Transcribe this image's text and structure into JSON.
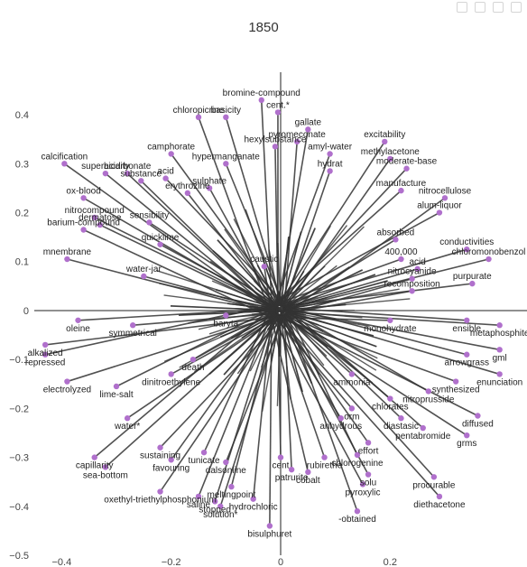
{
  "title": "1850",
  "chart_data": {
    "type": "scatter",
    "title": "1850",
    "xlim": [
      -0.45,
      0.45
    ],
    "ylim": [
      -0.5,
      0.45
    ],
    "xticks": [
      -0.4,
      -0.2,
      0,
      0.2
    ],
    "yticks": [
      -0.5,
      -0.4,
      -0.3,
      -0.2,
      -0.1,
      0,
      0.1,
      0.2,
      0.3,
      0.4
    ],
    "xtick_labels": [
      "−0.4",
      "−0.2",
      "0",
      "0.2"
    ],
    "ytick_labels": [
      "−0.5",
      "−0.4",
      "−0.3",
      "−0.2",
      "−0.1",
      "0",
      "0.1",
      "0.2",
      "0.3",
      "0.4"
    ],
    "grid": false,
    "origin_lines": true,
    "point_color": "#b070cc",
    "line_color": "#333333",
    "points": [
      {
        "label": "bromine-compound",
        "x": -0.035,
        "y": 0.43
      },
      {
        "label": "cent.*",
        "x": -0.005,
        "y": 0.405
      },
      {
        "label": "basicity",
        "x": -0.1,
        "y": 0.395
      },
      {
        "label": "chloropicrine",
        "x": -0.15,
        "y": 0.395
      },
      {
        "label": "gallate",
        "x": 0.05,
        "y": 0.37
      },
      {
        "label": "pyromeconate",
        "x": 0.03,
        "y": 0.345
      },
      {
        "label": "excitability",
        "x": 0.19,
        "y": 0.345
      },
      {
        "label": "hexylsubstance",
        "x": -0.01,
        "y": 0.335
      },
      {
        "label": "camphorate",
        "x": -0.2,
        "y": 0.32
      },
      {
        "label": "amyl-water",
        "x": 0.09,
        "y": 0.32
      },
      {
        "label": "methylacetone",
        "x": 0.2,
        "y": 0.31
      },
      {
        "label": "hypermanganate",
        "x": -0.1,
        "y": 0.3
      },
      {
        "label": "moderate-base",
        "x": 0.23,
        "y": 0.29
      },
      {
        "label": "calcification",
        "x": -0.395,
        "y": 0.3
      },
      {
        "label": "hydrat",
        "x": 0.09,
        "y": 0.285
      },
      {
        "label": "superacidity",
        "x": -0.32,
        "y": 0.28
      },
      {
        "label": "bicarbonate",
        "x": -0.28,
        "y": 0.28
      },
      {
        "label": "acid",
        "x": -0.21,
        "y": 0.27
      },
      {
        "label": "substance",
        "x": -0.255,
        "y": 0.265
      },
      {
        "label": "sulphate",
        "x": -0.13,
        "y": 0.25
      },
      {
        "label": "erythrozine",
        "x": -0.17,
        "y": 0.24
      },
      {
        "label": "manufacture",
        "x": 0.22,
        "y": 0.245
      },
      {
        "label": "ox-blood",
        "x": -0.36,
        "y": 0.23
      },
      {
        "label": "nitrocellulose",
        "x": 0.3,
        "y": 0.23
      },
      {
        "label": "alum-liquor",
        "x": 0.29,
        "y": 0.2
      },
      {
        "label": "nitrocompound",
        "x": -0.34,
        "y": 0.19
      },
      {
        "label": "dermatose",
        "x": -0.33,
        "y": 0.175
      },
      {
        "label": "barium-compound",
        "x": -0.36,
        "y": 0.165
      },
      {
        "label": "sensibility",
        "x": -0.24,
        "y": 0.18
      },
      {
        "label": "quicklime",
        "x": -0.22,
        "y": 0.135
      },
      {
        "label": "absorbed",
        "x": 0.21,
        "y": 0.145
      },
      {
        "label": "conductivities",
        "x": 0.34,
        "y": 0.125
      },
      {
        "label": "chloromonobenzol",
        "x": 0.38,
        "y": 0.105
      },
      {
        "label": "caustic",
        "x": -0.03,
        "y": 0.09
      },
      {
        "label": "400,000",
        "x": 0.22,
        "y": 0.105
      },
      {
        "label": "acid",
        "x": 0.25,
        "y": 0.085
      },
      {
        "label": "mnembrane",
        "x": -0.39,
        "y": 0.105
      },
      {
        "label": "nitrocyanide",
        "x": 0.24,
        "y": 0.065
      },
      {
        "label": "purpurate",
        "x": 0.35,
        "y": 0.055
      },
      {
        "label": "water-jar",
        "x": -0.25,
        "y": 0.07
      },
      {
        "label": "recomposition",
        "x": 0.24,
        "y": 0.04
      },
      {
        "label": "baryta",
        "x": -0.1,
        "y": -0.01
      },
      {
        "label": "oleine",
        "x": -0.37,
        "y": -0.02
      },
      {
        "label": "symmetrical",
        "x": -0.27,
        "y": -0.03
      },
      {
        "label": "monohydrate",
        "x": 0.2,
        "y": -0.02
      },
      {
        "label": "ensible",
        "x": 0.34,
        "y": -0.02
      },
      {
        "label": "metaphosphite",
        "x": 0.4,
        "y": -0.03
      },
      {
        "label": "alkalized",
        "x": -0.43,
        "y": -0.07
      },
      {
        "label": "repressed",
        "x": -0.43,
        "y": -0.09
      },
      {
        "label": "death",
        "x": -0.16,
        "y": -0.1
      },
      {
        "label": "ammonia",
        "x": 0.13,
        "y": -0.13
      },
      {
        "label": "arrowgrass",
        "x": 0.34,
        "y": -0.09
      },
      {
        "label": "gml",
        "x": 0.4,
        "y": -0.08
      },
      {
        "label": "dinitroethylene",
        "x": -0.2,
        "y": -0.13
      },
      {
        "label": "electrolyzed",
        "x": -0.39,
        "y": -0.145
      },
      {
        "label": "lime-salt",
        "x": -0.3,
        "y": -0.155
      },
      {
        "label": "enunciation",
        "x": 0.4,
        "y": -0.13
      },
      {
        "label": "synthesized",
        "x": 0.32,
        "y": -0.145
      },
      {
        "label": "nitroprusside",
        "x": 0.27,
        "y": -0.165
      },
      {
        "label": "chlorates",
        "x": 0.2,
        "y": -0.18
      },
      {
        "label": "orm",
        "x": 0.13,
        "y": -0.2
      },
      {
        "label": "anhydrous",
        "x": 0.11,
        "y": -0.22
      },
      {
        "label": "diastasic",
        "x": 0.22,
        "y": -0.22
      },
      {
        "label": "diffused",
        "x": 0.36,
        "y": -0.215
      },
      {
        "label": "water*",
        "x": -0.28,
        "y": -0.22
      },
      {
        "label": "pentabromide",
        "x": 0.26,
        "y": -0.24
      },
      {
        "label": "grms",
        "x": 0.34,
        "y": -0.255
      },
      {
        "label": "effort",
        "x": 0.16,
        "y": -0.27
      },
      {
        "label": "chlorogenine",
        "x": 0.14,
        "y": -0.295
      },
      {
        "label": "capillarity",
        "x": -0.34,
        "y": -0.3
      },
      {
        "label": "sea-bottom",
        "x": -0.32,
        "y": -0.32
      },
      {
        "label": "sustaining",
        "x": -0.22,
        "y": -0.28
      },
      {
        "label": "tunicate",
        "x": -0.14,
        "y": -0.29
      },
      {
        "label": "favouring",
        "x": -0.2,
        "y": -0.305
      },
      {
        "label": "dalsonline",
        "x": -0.1,
        "y": -0.31
      },
      {
        "label": "rubirethe",
        "x": 0.08,
        "y": -0.3
      },
      {
        "label": "cent",
        "x": 0.0,
        "y": -0.3
      },
      {
        "label": "patrurite",
        "x": 0.02,
        "y": -0.325
      },
      {
        "label": "cobalt",
        "x": 0.05,
        "y": -0.33
      },
      {
        "label": "solu",
        "x": 0.16,
        "y": -0.335
      },
      {
        "label": "procurable",
        "x": 0.28,
        "y": -0.34
      },
      {
        "label": "pyroxylic",
        "x": 0.15,
        "y": -0.355
      },
      {
        "label": "meltingpoint",
        "x": -0.09,
        "y": -0.36
      },
      {
        "label": "oxethyl-triethylphosphonium",
        "x": -0.22,
        "y": -0.37
      },
      {
        "label": "saline",
        "x": -0.15,
        "y": -0.38
      },
      {
        "label": "stopped",
        "x": -0.12,
        "y": -0.39
      },
      {
        "label": "solution*",
        "x": -0.11,
        "y": -0.4
      },
      {
        "label": "hydrochloric",
        "x": -0.05,
        "y": -0.385
      },
      {
        "label": "diethacetone",
        "x": 0.29,
        "y": -0.38
      },
      {
        "label": "-obtained",
        "x": 0.14,
        "y": -0.41
      },
      {
        "label": "bisulphuret",
        "x": -0.02,
        "y": -0.44
      }
    ]
  }
}
